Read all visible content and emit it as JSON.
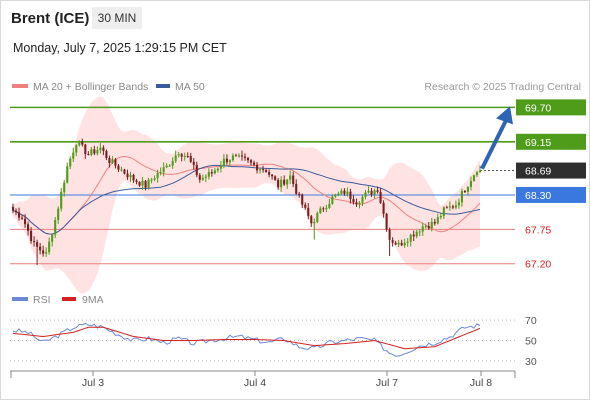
{
  "header": {
    "title": "Brent (ICE)",
    "timeframe": "30 MIN",
    "datetime": "Monday, July 7, 2025 1:29:15 PM CET"
  },
  "legend": {
    "ma20_label": "MA 20 + Bollinger Bands",
    "ma50_label": "MA 50",
    "credit": "Research © 2025 Trading Central",
    "rsi_label": "RSI",
    "rsi_ma_label": "9MA"
  },
  "colors": {
    "resistance": "#4f9c1a",
    "support": "#e87f7f",
    "pivot": "#3a78e0",
    "last": "#2f2f2f",
    "arrow": "#2f63b4",
    "ma20": "#f08080",
    "ma50": "#3a5a9a",
    "band_fill": "#ffdada",
    "candle_up": "#4f9c1a",
    "candle_down": "#7a1f1f",
    "rsi": "#6a88d8",
    "rsi_ma": "#d42020"
  },
  "chart_data": [
    {
      "type": "candlestick",
      "title": "Brent (ICE)",
      "timeframe": "30 MIN",
      "x_tick_labels": [
        "Jul 3",
        "Jul 4",
        "Jul 7",
        "Jul 8"
      ],
      "ylim": [
        67.1,
        69.85
      ],
      "last_price": 68.69,
      "levels": [
        {
          "price": 69.7,
          "label": "69.70",
          "kind": "resistance"
        },
        {
          "price": 69.15,
          "label": "69.15",
          "kind": "resistance"
        },
        {
          "price": 68.3,
          "label": "68.30",
          "kind": "pivot"
        },
        {
          "price": 67.75,
          "label": "67.75",
          "kind": "support"
        },
        {
          "price": 67.2,
          "label": "67.20",
          "kind": "support"
        }
      ],
      "target_arrow": {
        "from_price": 68.72,
        "to_price": 69.62
      },
      "close_anchors": [
        [
          0,
          68.05
        ],
        [
          3,
          67.95
        ],
        [
          7,
          67.5
        ],
        [
          11,
          67.35
        ],
        [
          14,
          67.9
        ],
        [
          18,
          68.75
        ],
        [
          21,
          69.15
        ],
        [
          25,
          68.95
        ],
        [
          29,
          69.05
        ],
        [
          32,
          68.85
        ],
        [
          36,
          68.7
        ],
        [
          40,
          68.55
        ],
        [
          44,
          68.45
        ],
        [
          47,
          68.6
        ],
        [
          51,
          68.75
        ],
        [
          55,
          69.0
        ],
        [
          58,
          68.9
        ],
        [
          62,
          68.55
        ],
        [
          66,
          68.65
        ],
        [
          70,
          68.85
        ],
        [
          73,
          68.9
        ],
        [
          77,
          68.85
        ],
        [
          81,
          68.75
        ],
        [
          84,
          68.7
        ],
        [
          88,
          68.45
        ],
        [
          92,
          68.6
        ],
        [
          95,
          68.25
        ],
        [
          99,
          67.85
        ],
        [
          103,
          68.1
        ],
        [
          106,
          68.25
        ],
        [
          110,
          68.35
        ],
        [
          114,
          68.2
        ],
        [
          117,
          68.3
        ],
        [
          121,
          68.4
        ],
        [
          125,
          67.6
        ],
        [
          128,
          67.5
        ],
        [
          132,
          67.65
        ],
        [
          136,
          67.8
        ],
        [
          140,
          67.85
        ],
        [
          143,
          68.05
        ],
        [
          147,
          68.15
        ],
        [
          150,
          68.4
        ],
        [
          154,
          68.72
        ],
        [
          155,
          68.69
        ]
      ],
      "series": [
        {
          "name": "MA 20 + Bollinger Bands"
        },
        {
          "name": "MA 50"
        }
      ]
    },
    {
      "type": "line",
      "title": "RSI",
      "ylim": [
        25,
        80
      ],
      "y_ticks": [
        70,
        50,
        30
      ],
      "series": [
        {
          "name": "RSI",
          "anchors": [
            [
              0,
              60
            ],
            [
              5,
              58
            ],
            [
              10,
              48
            ],
            [
              15,
              55
            ],
            [
              20,
              63
            ],
            [
              25,
              66
            ],
            [
              30,
              63
            ],
            [
              35,
              56
            ],
            [
              40,
              50
            ],
            [
              45,
              52
            ],
            [
              50,
              48
            ],
            [
              55,
              52
            ],
            [
              60,
              47
            ],
            [
              65,
              50
            ],
            [
              70,
              52
            ],
            [
              75,
              54
            ],
            [
              80,
              51
            ],
            [
              85,
              48
            ],
            [
              90,
              52
            ],
            [
              95,
              44
            ],
            [
              100,
              42
            ],
            [
              105,
              48
            ],
            [
              110,
              50
            ],
            [
              115,
              52
            ],
            [
              120,
              50
            ],
            [
              125,
              38
            ],
            [
              128,
              36
            ],
            [
              135,
              45
            ],
            [
              140,
              48
            ],
            [
              145,
              54
            ],
            [
              150,
              63
            ],
            [
              155,
              65
            ]
          ]
        },
        {
          "name": "9MA",
          "anchors": [
            [
              0,
              57
            ],
            [
              10,
              54
            ],
            [
              20,
              58
            ],
            [
              25,
              63
            ],
            [
              30,
              63
            ],
            [
              40,
              54
            ],
            [
              50,
              50
            ],
            [
              60,
              50
            ],
            [
              70,
              51
            ],
            [
              80,
              51
            ],
            [
              90,
              50
            ],
            [
              100,
              45
            ],
            [
              110,
              47
            ],
            [
              120,
              50
            ],
            [
              130,
              42
            ],
            [
              140,
              44
            ],
            [
              150,
              56
            ],
            [
              155,
              62
            ]
          ]
        }
      ]
    }
  ]
}
